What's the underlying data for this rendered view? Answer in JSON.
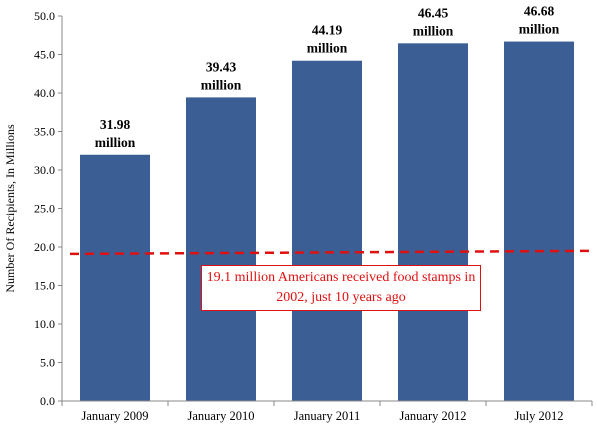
{
  "chart_data": {
    "type": "bar",
    "categories": [
      "January 2009",
      "January 2010",
      "January 2011",
      "January 2012",
      "July 2012"
    ],
    "values": [
      31.98,
      39.43,
      44.19,
      46.45,
      46.68
    ],
    "data_labels": [
      [
        "31.98",
        "million"
      ],
      [
        "39.43",
        "million"
      ],
      [
        "44.19",
        "million"
      ],
      [
        "46.45",
        "million"
      ],
      [
        "46.68",
        "million"
      ]
    ],
    "ylabel": "Number Of Recipients, In Millions",
    "xlabel": "",
    "title": "",
    "ylim": [
      0,
      50
    ],
    "yticks": [
      "0.0",
      "5.0",
      "10.0",
      "15.0",
      "20.0",
      "25.0",
      "30.0",
      "35.0",
      "40.0",
      "45.0",
      "50.0"
    ],
    "grid": false,
    "reference_line": {
      "y_start": 19.1,
      "y_end": 19.5,
      "color": "#e01010",
      "style": "dashed"
    },
    "annotation": "19.1 million Americans received food stamps in 2002, just 10 years ago",
    "colors": {
      "bar": "#3b5f94",
      "reference": "#e01010"
    }
  }
}
